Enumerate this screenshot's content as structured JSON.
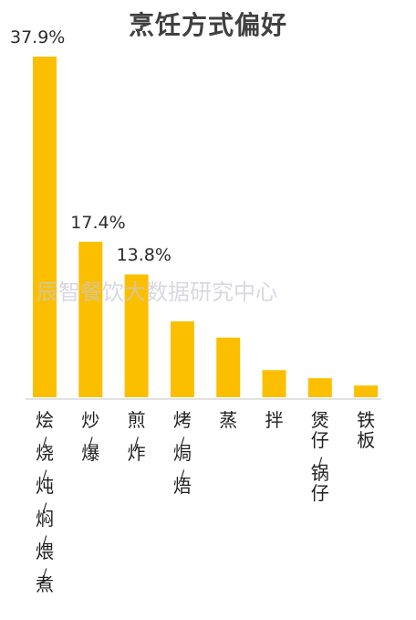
{
  "chart_data": {
    "type": "bar",
    "title": "烹饪方式偏好",
    "categories": [
      "烩/烧/炖/焖/煨/煮",
      "炒/爆",
      "煎/炸",
      "烤/焗/焐",
      "蒸",
      "拌",
      "煲仔/锅仔",
      "铁板"
    ],
    "values": [
      37.9,
      17.4,
      13.8,
      8.6,
      6.8,
      3.2,
      2.3,
      1.5
    ],
    "data_labels": [
      "37.9%",
      "17.4%",
      "13.8%",
      "",
      "",
      "",
      "",
      ""
    ],
    "ylim": [
      0,
      40
    ],
    "grid": false,
    "legend": "none",
    "bar_color": "#FBBF00"
  },
  "watermark": "辰智餐饮大数据研究中心"
}
